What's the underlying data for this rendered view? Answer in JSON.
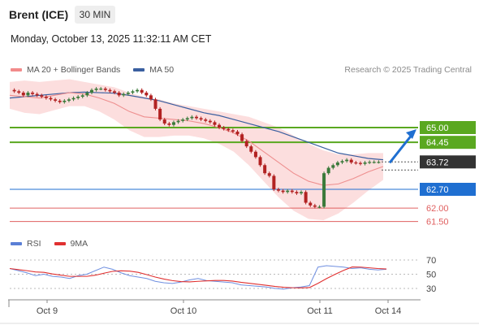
{
  "header": {
    "title": "Brent (ICE)",
    "timeframe": "30 MIN",
    "datetime": "Monday, October 13, 2025 11:32:11 AM CET"
  },
  "legend_top": [
    {
      "label": "MA 20 + Bollinger Bands",
      "color": "#f28b8b"
    },
    {
      "label": "MA 50",
      "color": "#3a5fa0"
    }
  ],
  "credit": "Research © 2025 Trading Central",
  "legend_bottom": [
    {
      "label": "RSI",
      "color": "#5b7fd6"
    },
    {
      "label": "9MA",
      "color": "#e03030"
    }
  ],
  "colors": {
    "resistance": "#5aa820",
    "pivot": "#1f6fd1",
    "support": "#e06060",
    "current": "#333333",
    "bull": "#3a7a3a",
    "bear": "#b22222"
  },
  "chart_data": {
    "type": "candlestick",
    "price_levels": [
      {
        "value": 65.0,
        "label": "65.00",
        "kind": "resistance"
      },
      {
        "value": 64.45,
        "label": "64.45",
        "kind": "resistance"
      },
      {
        "value": 63.72,
        "label": "63.72",
        "kind": "current"
      },
      {
        "value": 62.7,
        "label": "62.70",
        "kind": "pivot"
      },
      {
        "value": 62.0,
        "label": "62.00",
        "kind": "support"
      },
      {
        "value": 61.5,
        "label": "61.50",
        "kind": "support"
      }
    ],
    "x_ticks": [
      "Oct 9",
      "Oct 10",
      "Oct 11",
      "Oct 14"
    ],
    "close_path": [
      66.4,
      66.35,
      66.3,
      66.2,
      66.3,
      66.25,
      66.2,
      66.15,
      66.1,
      66.05,
      66.0,
      65.95,
      66.0,
      66.05,
      66.1,
      66.15,
      66.2,
      66.3,
      66.4,
      66.45,
      66.45,
      66.4,
      66.35,
      66.3,
      66.2,
      66.25,
      66.3,
      66.35,
      66.4,
      66.3,
      66.2,
      66.05,
      65.7,
      65.3,
      65.15,
      65.1,
      65.2,
      65.25,
      65.3,
      65.35,
      65.4,
      65.35,
      65.3,
      65.25,
      65.2,
      65.1,
      65.0,
      64.95,
      64.9,
      64.85,
      64.75,
      64.5,
      64.3,
      64.1,
      63.9,
      63.6,
      63.3,
      63.2,
      62.7,
      62.65,
      62.6,
      62.65,
      62.6,
      62.55,
      62.6,
      62.2,
      62.1,
      62.05,
      62.05,
      63.3,
      63.5,
      63.6,
      63.7,
      63.75,
      63.8,
      63.7,
      63.68,
      63.65,
      63.7,
      63.72,
      63.72,
      63.72
    ],
    "ma50_path": [
      66.1,
      66.15,
      66.2,
      66.25,
      66.3,
      66.32,
      66.3,
      66.28,
      66.2,
      66.1,
      66.0,
      65.85,
      65.7,
      65.55,
      65.45,
      65.3,
      65.15,
      65.0,
      64.85,
      64.65,
      64.45,
      64.25,
      64.05,
      63.95,
      63.85,
      63.8
    ],
    "ma20_path": [
      66.2,
      66.15,
      66.1,
      66.2,
      66.3,
      66.25,
      66.1,
      65.9,
      65.6,
      65.4,
      65.35,
      65.3,
      65.25,
      65.15,
      65.0,
      64.8,
      64.5,
      64.1,
      63.7,
      63.3,
      63.0,
      62.85,
      62.9,
      63.1,
      63.35,
      63.55
    ],
    "rsi": {
      "ticks": [
        "70",
        "50",
        "30"
      ],
      "values": [
        58,
        55,
        52,
        48,
        50,
        47,
        46,
        44,
        48,
        50,
        55,
        60,
        57,
        52,
        48,
        46,
        44,
        40,
        38,
        37,
        39,
        42,
        44,
        41,
        40,
        39,
        38,
        35,
        34,
        33,
        32,
        30,
        29,
        31,
        32,
        34,
        60,
        62,
        61,
        60,
        58,
        59,
        57,
        56,
        57
      ]
    }
  }
}
